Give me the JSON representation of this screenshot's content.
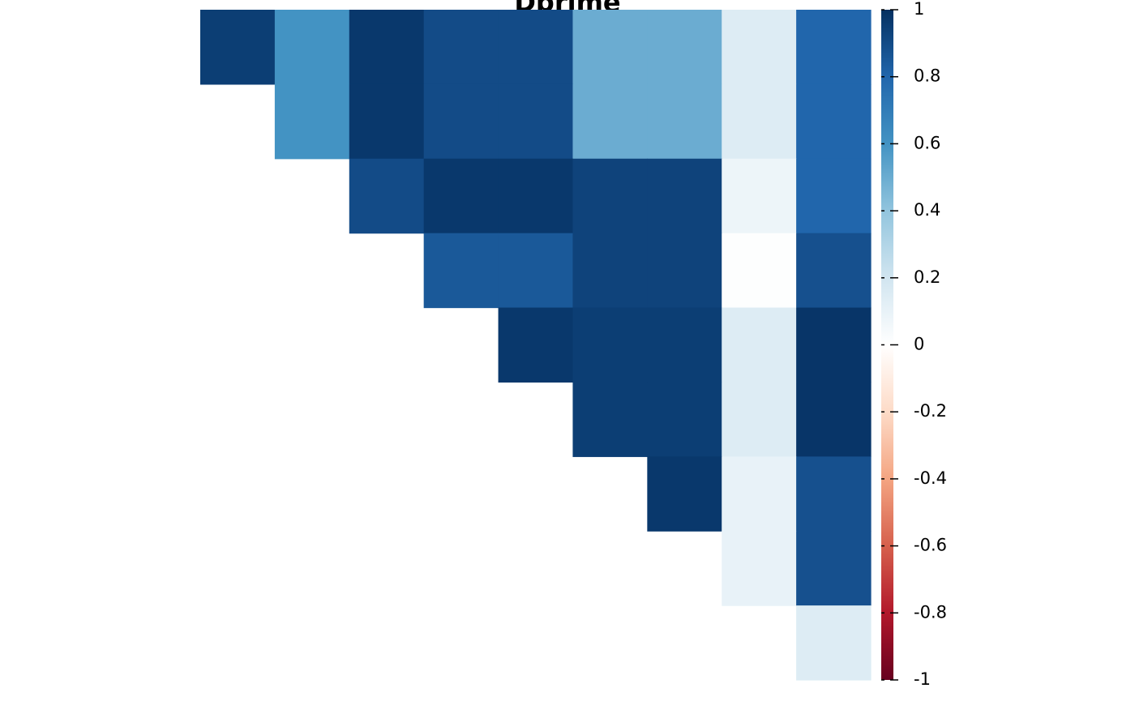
{
  "chart_data": {
    "type": "heatmap",
    "title": "Dprime",
    "z": [
      [
        0.95,
        0.6,
        0.97,
        0.9,
        0.9,
        0.5,
        0.5,
        0.15,
        0.8
      ],
      [
        null,
        0.6,
        0.97,
        0.9,
        0.9,
        0.5,
        0.5,
        0.15,
        0.8
      ],
      [
        null,
        null,
        0.9,
        0.97,
        0.97,
        0.93,
        0.93,
        0.08,
        0.8
      ],
      [
        null,
        null,
        null,
        0.85,
        0.85,
        0.93,
        0.93,
        0.01,
        0.88
      ],
      [
        null,
        null,
        null,
        null,
        0.97,
        0.95,
        0.95,
        0.15,
        0.98
      ],
      [
        null,
        null,
        null,
        null,
        null,
        0.95,
        0.95,
        0.15,
        0.98
      ],
      [
        null,
        null,
        null,
        null,
        null,
        null,
        0.97,
        0.1,
        0.88
      ],
      [
        null,
        null,
        null,
        null,
        null,
        null,
        null,
        0.1,
        0.88
      ],
      [
        null,
        null,
        null,
        null,
        null,
        null,
        null,
        null,
        0.15
      ]
    ],
    "zlim": [
      -1,
      1
    ],
    "zticks": [
      -1,
      -0.8,
      -0.6,
      -0.4,
      -0.2,
      0,
      0.2,
      0.4,
      0.6,
      0.8,
      1
    ],
    "colorscale": [
      "#67001F",
      "#B2182B",
      "#D6604D",
      "#F4A582",
      "#FDDBC7",
      "#FFFFFF",
      "#D1E5F0",
      "#92C5DE",
      "#4393C3",
      "#2166AC",
      "#053061"
    ]
  }
}
